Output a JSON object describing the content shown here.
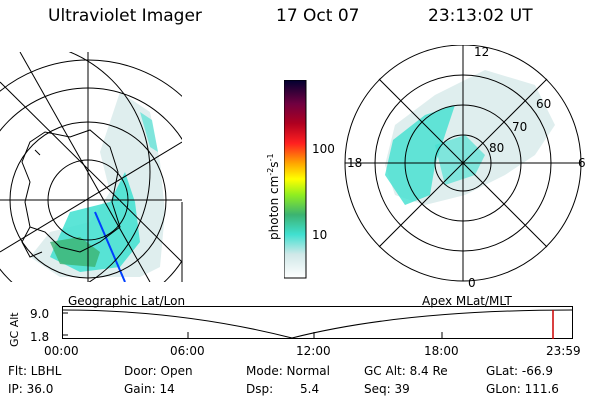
{
  "header": {
    "instrument": "Ultraviolet Imager",
    "date": "17 Oct 07",
    "time": "23:13:02 UT"
  },
  "colorbar": {
    "unit_label": "photon cm",
    "unit_exp1": "-2",
    "unit_mid": "s",
    "unit_exp2": "-1",
    "ticks": [
      "100",
      "10"
    ]
  },
  "polar_plot": {
    "mlt_labels": {
      "top": "12",
      "left": "18",
      "right": "6",
      "bottom": "0"
    },
    "lat_labels": [
      "60",
      "70",
      "80"
    ]
  },
  "timeline": {
    "left_label": "Geographic Lat/Lon",
    "right_label": "Apex MLat/MLT",
    "axis_title": "GC Alt",
    "y_ticks": [
      "9.0",
      "1.8"
    ],
    "x_ticks": [
      "00:00",
      "06:00",
      "12:00",
      "18:00",
      "23:59"
    ]
  },
  "info": {
    "filter": "Flt: LBHL",
    "ip": "IP: 36.0",
    "door": "Door: Open",
    "gain": "Gain: 14",
    "mode": "Mode: Normal",
    "dsp_label": "Dsp:",
    "dsp_value": "5.4",
    "gc_alt": "GC Alt: 8.4 Re",
    "seq": "Seq: 39",
    "glat": "GLat: -66.9",
    "glon": "GLon: 111.6"
  },
  "colors": {
    "aurora_cyan": "#40e0d0",
    "aurora_green": "#3cb371",
    "aurora_pale": "#dfeeee",
    "marker_red": "#cc0000"
  }
}
